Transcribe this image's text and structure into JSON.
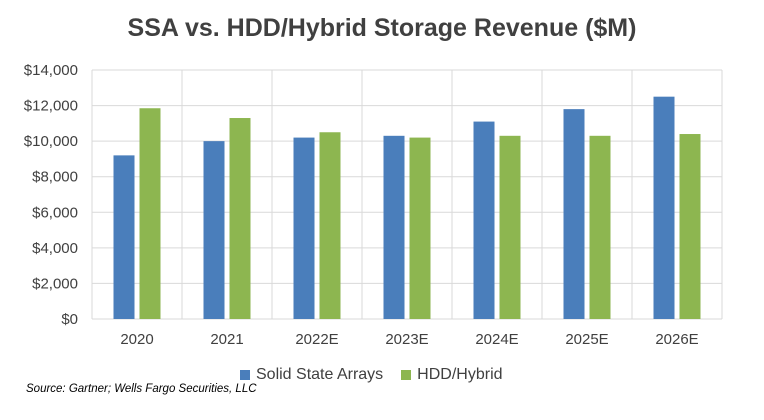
{
  "chart_data": {
    "type": "bar",
    "title": "SSA vs. HDD/Hybrid Storage Revenue ($M)",
    "categories": [
      "2020",
      "2021",
      "2022E",
      "2023E",
      "2024E",
      "2025E",
      "2026E"
    ],
    "series": [
      {
        "name": "Solid State Arrays",
        "color": "#4a7ebb",
        "values": [
          9200,
          10000,
          10200,
          10300,
          11100,
          11800,
          12500
        ]
      },
      {
        "name": "HDD/Hybrid",
        "color": "#8db650",
        "values": [
          11850,
          11300,
          10500,
          10200,
          10300,
          10300,
          10400
        ]
      }
    ],
    "ylim": [
      0,
      14000
    ],
    "yticks": [
      "$0",
      "$2,000",
      "$4,000",
      "$6,000",
      "$8,000",
      "$10,000",
      "$12,000",
      "$14,000"
    ],
    "grid": true,
    "legend_position": "bottom",
    "source": "Source: Gartner; Wells Fargo Securities, LLC"
  }
}
